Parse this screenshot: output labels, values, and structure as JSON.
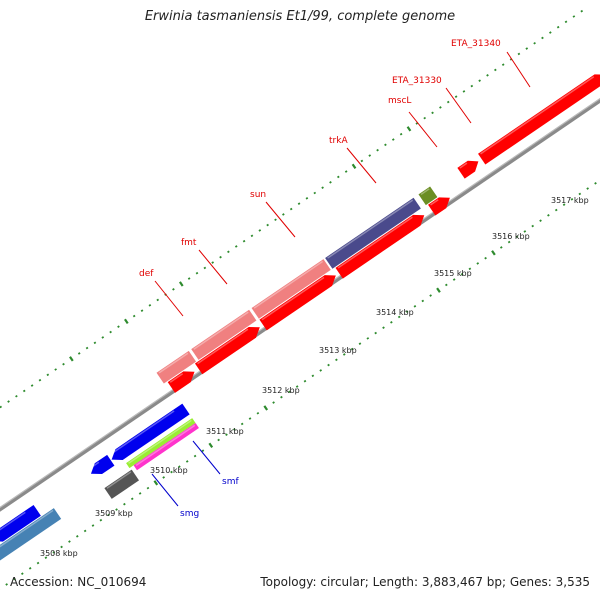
{
  "title": "Erwinia tasmaniensis Et1/99, complete genome",
  "footer": {
    "accession": "Accession: NC_010694",
    "summary": "Topology: circular; Length: 3,883,467 bp; Genes: 3,535"
  },
  "ticks": [
    {
      "label": "3508 kbp"
    },
    {
      "label": "3509 kbp"
    },
    {
      "label": "3510 kbp"
    },
    {
      "label": "3511 kbp"
    },
    {
      "label": "3512 kbp"
    },
    {
      "label": "3513 kbp"
    },
    {
      "label": "3514 kbp"
    },
    {
      "label": "3515 kbp"
    },
    {
      "label": "3516 kbp"
    },
    {
      "label": "3517 kbp"
    }
  ],
  "gene_labels": [
    {
      "text": "def",
      "color": "#e00000"
    },
    {
      "text": "fmt",
      "color": "#e00000"
    },
    {
      "text": "sun",
      "color": "#e00000"
    },
    {
      "text": "trkA",
      "color": "#e00000"
    },
    {
      "text": "mscL",
      "color": "#e00000"
    },
    {
      "text": "ETA_31330",
      "color": "#e00000"
    },
    {
      "text": "ETA_31340",
      "color": "#e00000"
    },
    {
      "text": "smf",
      "color": "#0000cc"
    },
    {
      "text": "smg",
      "color": "#0000cc"
    }
  ],
  "colors": {
    "forward_cds": "#ff0000",
    "rna_gene": "#f08080",
    "reverse_cds": "#0000ee",
    "olive_gene": "#6b8e23",
    "purple_gene": "#4a4a8c",
    "steel_gene": "#4682b4",
    "gray_gene": "#555555",
    "lime_gene": "#99ee33",
    "magenta_gene": "#ff33cc",
    "backbone": "#888888",
    "ticks": "#2e8b2e"
  }
}
